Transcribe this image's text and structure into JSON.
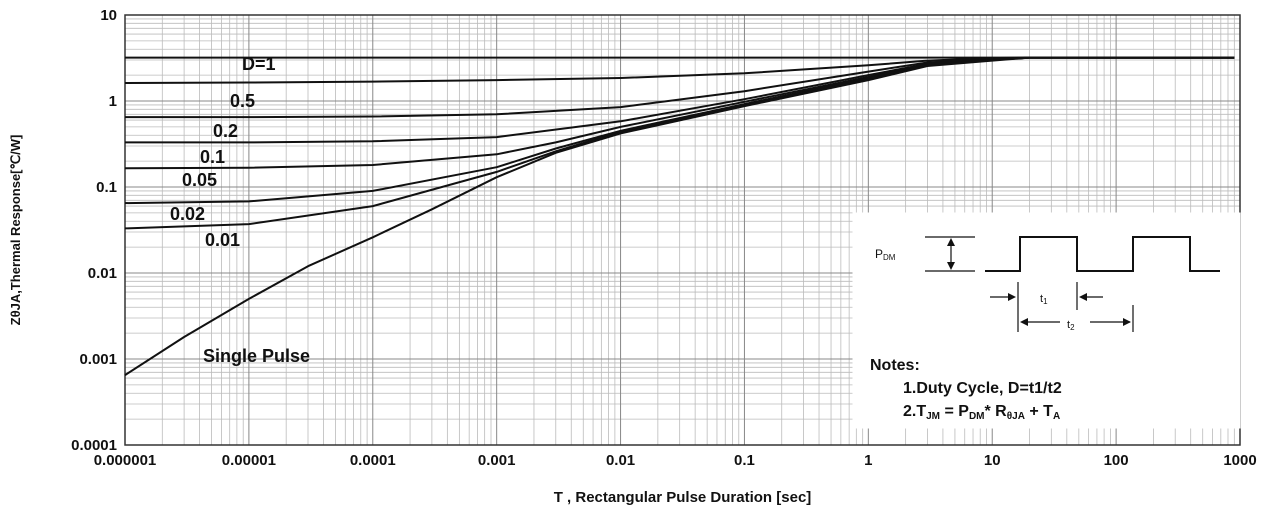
{
  "chart_data": {
    "type": "line",
    "xscale": "log",
    "yscale": "log",
    "xlim": [
      1e-06,
      1000
    ],
    "ylim": [
      0.0001,
      10
    ],
    "grid": true,
    "xlabel": "T , Rectangular Pulse Duration [sec]",
    "ylabel": "ZθJA,Thermal Response[℃/W]",
    "x_ticks": [
      "0.000001",
      "0.00001",
      "0.0001",
      "0.001",
      "0.01",
      "0.1",
      "1",
      "10",
      "100",
      "1000"
    ],
    "y_ticks": [
      "0.0001",
      "0.001",
      "0.01",
      "0.1",
      "1",
      "10"
    ],
    "series": [
      {
        "name": "D=1",
        "x": [
          1e-06,
          1e-05,
          0.0001,
          0.001,
          0.01,
          0.1,
          1,
          10,
          100,
          900
        ],
        "y": [
          3.2,
          3.2,
          3.2,
          3.2,
          3.2,
          3.2,
          3.2,
          3.2,
          3.2,
          3.2
        ]
      },
      {
        "name": "0.5",
        "x": [
          1e-06,
          1e-05,
          0.0001,
          0.001,
          0.01,
          0.1,
          1,
          3,
          10,
          20,
          100,
          900
        ],
        "y": [
          1.62,
          1.64,
          1.68,
          1.75,
          1.85,
          2.1,
          2.6,
          2.95,
          3.15,
          3.2,
          3.2,
          3.2
        ]
      },
      {
        "name": "0.2",
        "x": [
          1e-06,
          1e-05,
          0.0001,
          0.001,
          0.01,
          0.1,
          1,
          3,
          10,
          20,
          100,
          900
        ],
        "y": [
          0.65,
          0.65,
          0.66,
          0.7,
          0.85,
          1.3,
          2.2,
          2.8,
          3.1,
          3.2,
          3.2,
          3.2
        ]
      },
      {
        "name": "0.1",
        "x": [
          1e-06,
          1e-05,
          0.0001,
          0.001,
          0.01,
          0.1,
          1,
          3,
          10,
          20,
          100,
          900
        ],
        "y": [
          0.33,
          0.33,
          0.34,
          0.38,
          0.58,
          1.05,
          2.0,
          2.7,
          3.05,
          3.2,
          3.2,
          3.2
        ]
      },
      {
        "name": "0.05",
        "x": [
          1e-06,
          1e-05,
          0.0001,
          0.001,
          0.003,
          0.01,
          0.1,
          1,
          3,
          10,
          20,
          100,
          900
        ],
        "y": [
          0.165,
          0.167,
          0.18,
          0.24,
          0.33,
          0.5,
          0.98,
          1.9,
          2.65,
          3.0,
          3.2,
          3.2,
          3.2
        ]
      },
      {
        "name": "0.02",
        "x": [
          1e-06,
          1e-05,
          0.0001,
          0.001,
          0.003,
          0.01,
          0.1,
          1,
          3,
          10,
          20,
          100,
          900
        ],
        "y": [
          0.065,
          0.068,
          0.09,
          0.17,
          0.28,
          0.45,
          0.92,
          1.85,
          2.6,
          3.0,
          3.2,
          3.2,
          3.2
        ]
      },
      {
        "name": "0.01",
        "x": [
          1e-06,
          1e-05,
          0.0001,
          0.001,
          0.003,
          0.01,
          0.1,
          1,
          3,
          10,
          20,
          100,
          900
        ],
        "y": [
          0.033,
          0.037,
          0.06,
          0.15,
          0.26,
          0.44,
          0.9,
          1.8,
          2.6,
          3.0,
          3.2,
          3.2,
          3.2
        ]
      },
      {
        "name": "Single Pulse",
        "x": [
          1e-06,
          3e-06,
          1e-05,
          3e-05,
          0.0001,
          0.0003,
          0.001,
          0.003,
          0.01,
          0.1,
          1,
          3,
          10,
          20,
          100,
          900
        ],
        "y": [
          0.00065,
          0.0018,
          0.005,
          0.012,
          0.026,
          0.055,
          0.13,
          0.25,
          0.42,
          0.87,
          1.75,
          2.55,
          2.95,
          3.2,
          3.2,
          3.2
        ]
      }
    ],
    "annotations": {
      "single_pulse": "Single Pulse",
      "inset": {
        "pdm_label": "P",
        "pdm_sub": "DM",
        "t1": "t",
        "t1_sub": "1",
        "t2": "t",
        "t2_sub": "2"
      },
      "notes_title": "Notes:",
      "note1": "1.Duty  Cycle, D=t1/t2",
      "note2_prefix": "2.T",
      "note2_jm_sub": "JM",
      "note2_eq": " = P",
      "note2_dm_sub": "DM",
      "note2_mid": "* R",
      "note2_theta_sub": "θJA",
      "note2_tail": " + T",
      "note2_a_sub": "A"
    }
  }
}
